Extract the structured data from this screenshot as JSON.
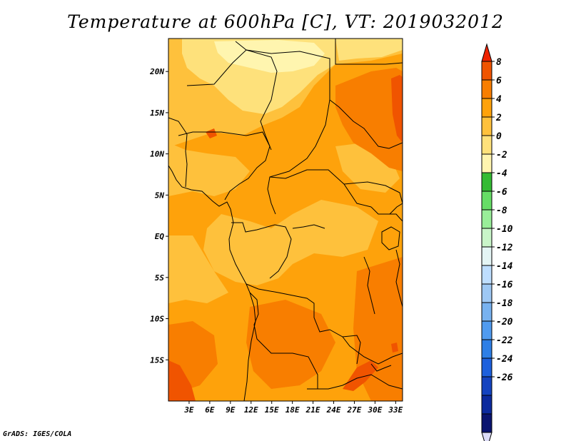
{
  "title": "Temperature at 600hPa [C], VT: 2019032012",
  "credit": "GrADS: IGES/COLA",
  "map": {
    "lat_range": [
      -20,
      24
    ],
    "lon_range": [
      0,
      34
    ],
    "lat_ticks": [
      {
        "lat": 20,
        "label": "20N"
      },
      {
        "lat": 15,
        "label": "15N"
      },
      {
        "lat": 10,
        "label": "10N"
      },
      {
        "lat": 5,
        "label": "5N"
      },
      {
        "lat": 0,
        "label": "EQ"
      },
      {
        "lat": -5,
        "label": "5S"
      },
      {
        "lat": -10,
        "label": "10S"
      },
      {
        "lat": -15,
        "label": "15S"
      }
    ],
    "lon_ticks": [
      {
        "lon": 3,
        "label": "3E"
      },
      {
        "lon": 6,
        "label": "6E"
      },
      {
        "lon": 9,
        "label": "9E"
      },
      {
        "lon": 12,
        "label": "12E"
      },
      {
        "lon": 15,
        "label": "15E"
      },
      {
        "lon": 18,
        "label": "18E"
      },
      {
        "lon": 21,
        "label": "21E"
      },
      {
        "lon": 24,
        "label": "24E"
      },
      {
        "lon": 27,
        "label": "27E"
      },
      {
        "lon": 30,
        "label": "30E"
      },
      {
        "lon": 33,
        "label": "33E"
      }
    ]
  },
  "colorbar": {
    "colors_top_to_bottom": [
      "#ef2300",
      "#f05400",
      "#f87e00",
      "#fea20b",
      "#fec13c",
      "#fee17b",
      "#fff5af",
      "#33bb33",
      "#66dd66",
      "#99ee99",
      "#c9f5c9",
      "#e4f5f5",
      "#bedeff",
      "#9ec8f4",
      "#78b2f0",
      "#509bf0",
      "#2e7fe6",
      "#1d60dd",
      "#1443c0",
      "#0c2a9e",
      "#0a1470",
      "#dcdcf8"
    ],
    "labels": [
      "8",
      "6",
      "4",
      "2",
      "0",
      "-2",
      "-4",
      "-6",
      "-8",
      "-10",
      "-12",
      "-14",
      "-16",
      "-18",
      "-20",
      "-22",
      "-24",
      "-26"
    ]
  },
  "field_colors": {
    "warm_orange": "#fea20b",
    "light_orange": "#fec13c",
    "pale_yellow": "#fee17b",
    "cream": "#fff5af",
    "dark_orange": "#f87e00",
    "red_orange": "#f05400"
  }
}
